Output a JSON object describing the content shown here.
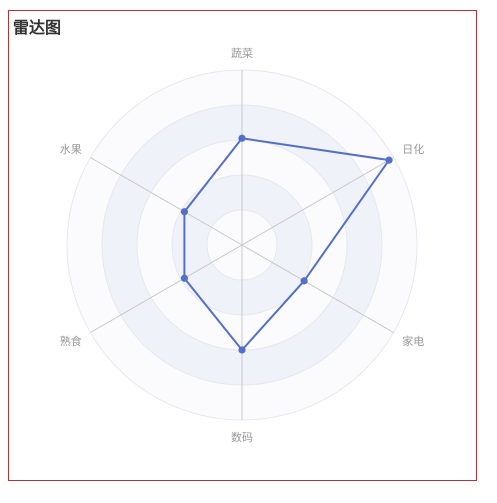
{
  "chart_data": {
    "type": "radar",
    "title": "雷达图",
    "indicators": [
      "蔬菜",
      "日化",
      "家电",
      "数码",
      "熟食",
      "水果"
    ],
    "max": 100,
    "levels": 5,
    "series": [
      {
        "values": [
          61,
          97,
          41,
          60,
          38,
          38
        ]
      }
    ],
    "colors": {
      "line": "#5470c6",
      "band_light": "#fbfbfd",
      "band_dark": "#f0f2f9",
      "ring": "#e6e8ee",
      "axis": "#c8c8c8",
      "border": "#b0343a"
    }
  }
}
